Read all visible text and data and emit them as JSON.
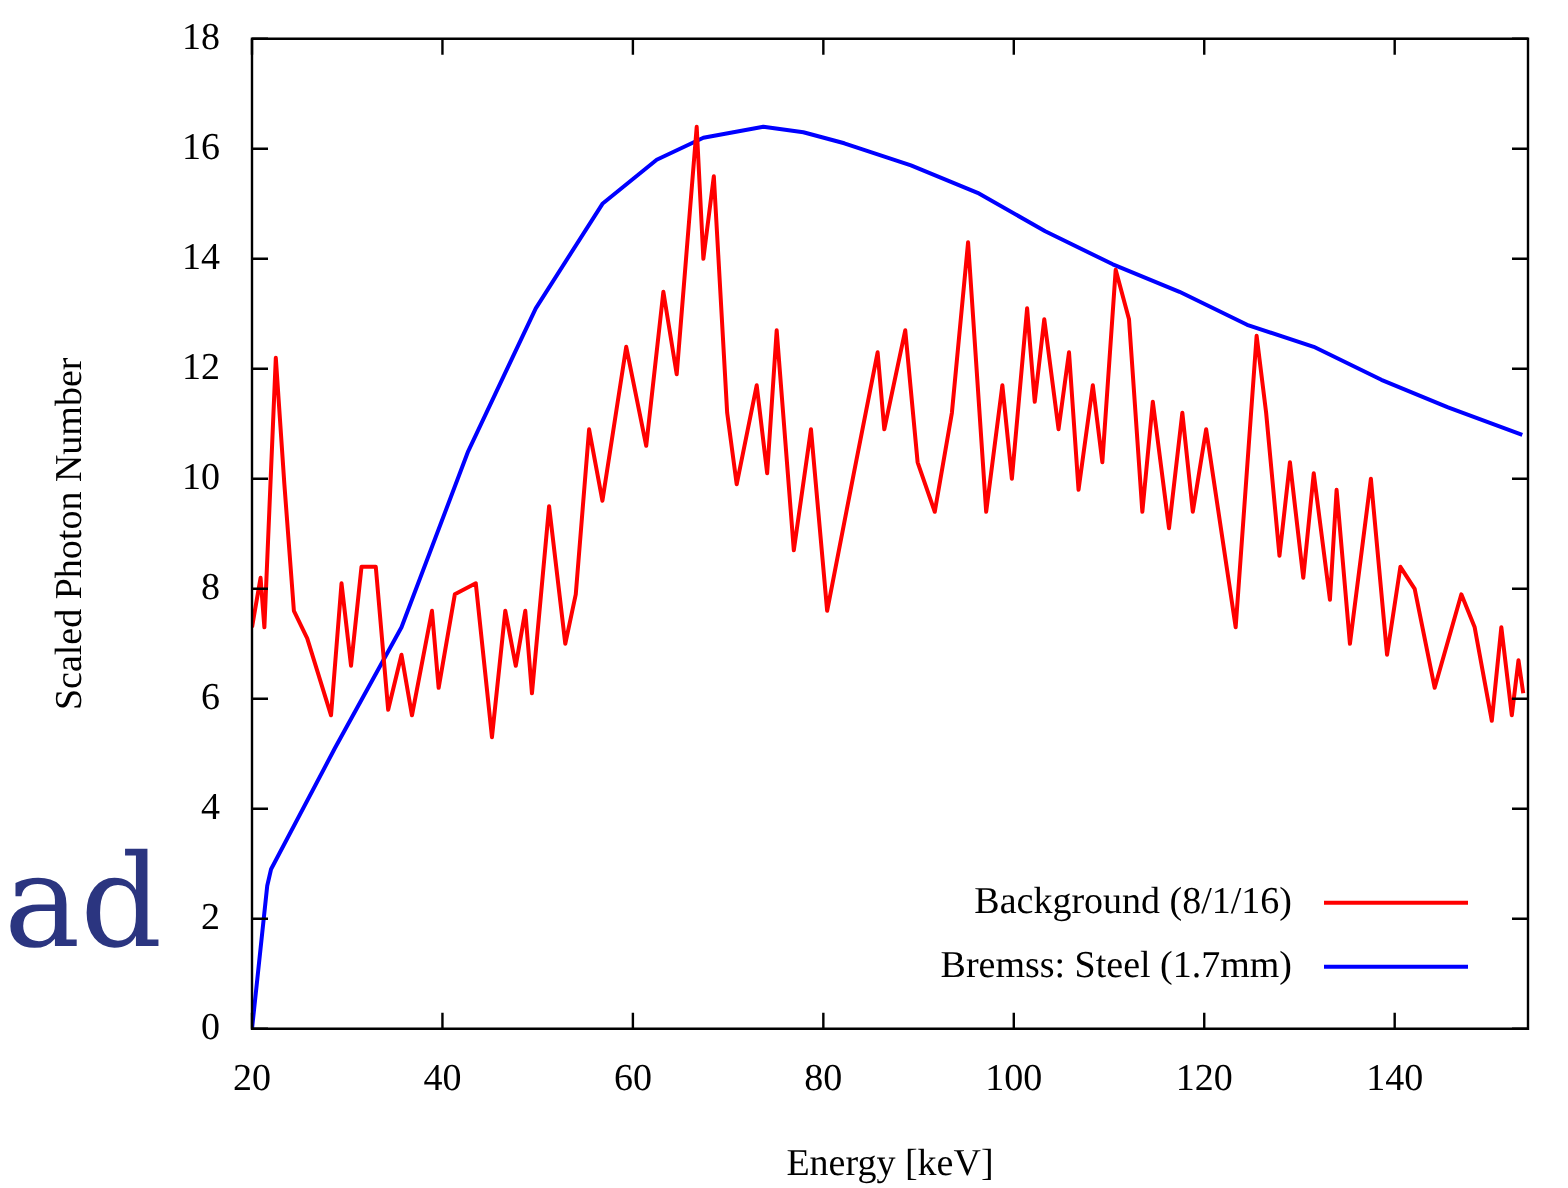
{
  "chart_data": {
    "type": "line",
    "xlabel": "Energy [keV]",
    "ylabel": "Scaled Photon Number",
    "annotations": [
      "ad"
    ],
    "xlim": [
      20,
      154
    ],
    "xticks": [
      20,
      40,
      60,
      80,
      100,
      120,
      140
    ],
    "ylim": [
      0,
      18
    ],
    "yticks": [
      0,
      2,
      4,
      6,
      8,
      10,
      12,
      14,
      16,
      18
    ],
    "grid": false,
    "legend": "bottom right",
    "marker": "none",
    "line_style": "solid",
    "series": [
      {
        "name": "Background (8/1/16)",
        "color": "#ff0000",
        "x": [
          20,
          20.9,
          21.3,
          22.5,
          23.4,
          24.4,
          25.8,
          28.3,
          29.4,
          30.4,
          31.5,
          33,
          34.3,
          35.7,
          36.8,
          38.9,
          39.6,
          41.3,
          43.5,
          45.2,
          46.6,
          47.7,
          48.7,
          49.4,
          51.2,
          52.9,
          54,
          55.4,
          56.8,
          59.3,
          61.4,
          63.2,
          64.6,
          66.7,
          67.4,
          68.5,
          69.9,
          70.9,
          73,
          74.1,
          75.1,
          76.9,
          78.7,
          80.4,
          83.2,
          85.7,
          86.4,
          88.6,
          89.9,
          91.7,
          93.5,
          95.2,
          97.1,
          98.8,
          99.8,
          101.4,
          102.2,
          103.2,
          104.7,
          105.8,
          106.8,
          108.3,
          109.3,
          110.7,
          112.1,
          113.5,
          114.6,
          116.3,
          117.7,
          118.8,
          120.2,
          123.3,
          125.5,
          126.5,
          127.9,
          129,
          130.4,
          131.5,
          133.2,
          133.9,
          135.3,
          137.5,
          139.2,
          140.6,
          142.1,
          144.2,
          147,
          148.4,
          150.2,
          151.2,
          152.3,
          153,
          153.5
        ],
        "values": [
          7.3,
          8.2,
          7.3,
          12.2,
          9.9,
          7.6,
          7.1,
          5.7,
          8.1,
          6.6,
          8.4,
          8.4,
          5.8,
          6.8,
          5.7,
          7.6,
          6.2,
          7.9,
          8.1,
          5.3,
          7.6,
          6.6,
          7.6,
          6.1,
          9.5,
          7,
          7.9,
          10.9,
          9.6,
          12.4,
          10.6,
          13.4,
          11.9,
          16.4,
          14,
          15.5,
          11.2,
          9.9,
          11.7,
          10.1,
          12.7,
          8.7,
          10.9,
          7.6,
          10.1,
          12.3,
          10.9,
          12.7,
          10.3,
          9.4,
          11.2,
          14.3,
          9.4,
          11.7,
          10,
          13.1,
          11.4,
          12.9,
          10.9,
          12.3,
          9.8,
          11.7,
          10.3,
          13.8,
          12.9,
          9.4,
          11.4,
          9.1,
          11.2,
          9.4,
          10.9,
          7.3,
          12.6,
          11.2,
          8.6,
          10.3,
          8.2,
          10.1,
          7.8,
          9.8,
          7,
          10,
          6.8,
          8.4,
          8,
          6.2,
          7.9,
          7.3,
          5.6,
          7.3,
          5.7,
          6.7,
          6.1
        ]
      },
      {
        "name": "Bremss: Steel (1.7mm)",
        "color": "#0000ff",
        "x": [
          20,
          21.6,
          22,
          28.7,
          35.7,
          42.7,
          49.8,
          56.8,
          62.5,
          67.4,
          73.7,
          77.9,
          82.2,
          89.2,
          96.2,
          103.3,
          110.4,
          117.4,
          124.5,
          131.5,
          138.6,
          145.6,
          153.4
        ],
        "values": [
          0,
          2.6,
          2.9,
          5.1,
          7.3,
          10.5,
          13.1,
          15,
          15.8,
          16.2,
          16.4,
          16.3,
          16.1,
          15.7,
          15.2,
          14.5,
          13.9,
          13.4,
          12.8,
          12.4,
          11.8,
          11.3,
          10.8
        ]
      }
    ]
  }
}
